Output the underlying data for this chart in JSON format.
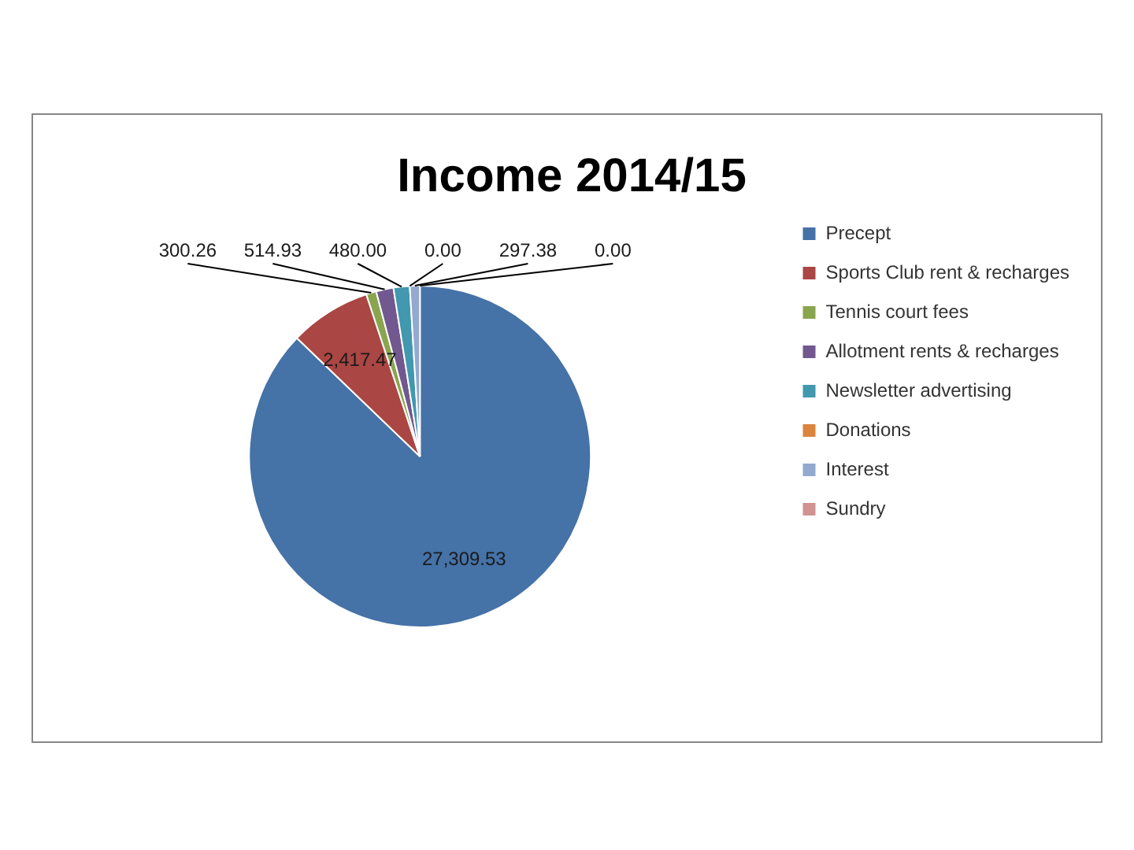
{
  "chart_data": {
    "type": "pie",
    "title": "Income 2014/15",
    "categories": [
      "Precept",
      "Sports Club rent & recharges",
      "Tennis court fees",
      "Allotment rents & recharges",
      "Newsletter advertising",
      "Donations",
      "Interest",
      "Sundry"
    ],
    "values": [
      27309.53,
      2417.47,
      300.26,
      514.93,
      480,
      0,
      297.38,
      0
    ],
    "colors": [
      "#4572a7",
      "#aa4643",
      "#89a54e",
      "#71588f",
      "#4198af",
      "#db843d",
      "#93a9cf",
      "#d19392"
    ],
    "value_labels": [
      "27,309.53",
      "2,417.47",
      "300.26",
      "514.93",
      "480.00",
      "0.00",
      "297.38",
      "0.00"
    ],
    "legend": "right"
  }
}
